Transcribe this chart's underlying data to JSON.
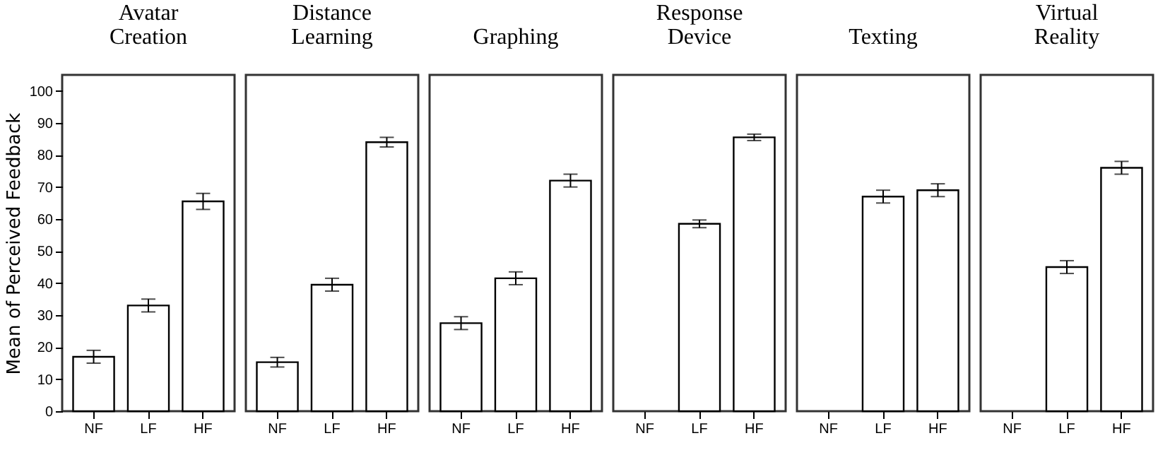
{
  "chart_data": [
    {
      "type": "bar",
      "title": "Avatar Creation",
      "ylabel": "Mean of Perceived Feedback",
      "categories": [
        "NF",
        "LF",
        "HF"
      ],
      "values": [
        17,
        33,
        65.5
      ],
      "errors": [
        2,
        2,
        2.5
      ],
      "color": "#ffffff",
      "ylim": [
        0,
        105
      ],
      "yticks": [
        0,
        10,
        20,
        30,
        40,
        50,
        60,
        70,
        80,
        90,
        100
      ],
      "grid": false
    },
    {
      "type": "bar",
      "title": "Distance Learning",
      "categories": [
        "NF",
        "LF",
        "HF"
      ],
      "values": [
        15.3,
        39.5,
        84
      ],
      "errors": [
        1.5,
        2,
        1.5
      ],
      "color": "#ffffff",
      "ylim": [
        0,
        105
      ],
      "tick_labels": "x",
      "grid": false
    },
    {
      "type": "bar",
      "title": "Graphing",
      "categories": [
        "NF",
        "LF",
        "HF"
      ],
      "values": [
        27.5,
        41.5,
        72
      ],
      "errors": [
        2,
        2,
        2
      ],
      "color": "#ffffff",
      "ylim": [
        0,
        105
      ],
      "tick_labels": "x",
      "grid": false
    },
    {
      "type": "bar",
      "title": "Response Device",
      "categories": [
        "NF",
        "LF",
        "HF"
      ],
      "values": [
        null,
        58.5,
        85.5
      ],
      "errors": [
        null,
        1.2,
        1
      ],
      "color": "#ffffff",
      "ylim": [
        0,
        105
      ],
      "tick_labels": "x",
      "grid": false
    },
    {
      "type": "bar",
      "title": "Texting",
      "categories": [
        "NF",
        "LF",
        "HF"
      ],
      "values": [
        null,
        67,
        69
      ],
      "errors": [
        null,
        2,
        2
      ],
      "color": "#ffffff",
      "ylim": [
        0,
        105
      ],
      "tick_labels": "x",
      "grid": false
    },
    {
      "type": "bar",
      "title": "Virtual Reality",
      "categories": [
        "NF",
        "LF",
        "HF"
      ],
      "values": [
        null,
        45,
        76
      ],
      "errors": [
        null,
        2,
        2
      ],
      "color": "#ffffff",
      "ylim": [
        0,
        105
      ],
      "tick_labels": "x",
      "grid": false
    }
  ]
}
